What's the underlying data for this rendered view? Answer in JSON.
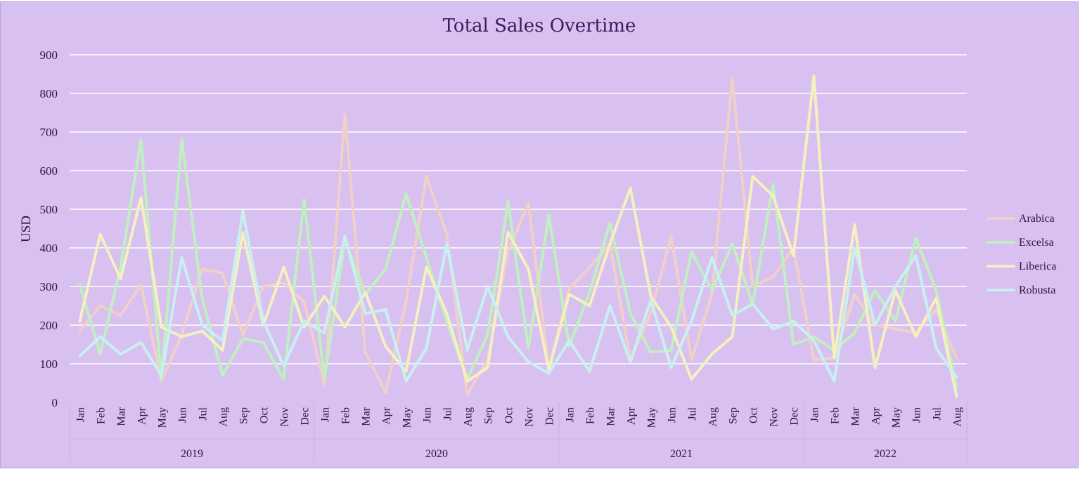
{
  "chart_data": {
    "type": "line",
    "title": "Total Sales Overtime",
    "ylabel": "USD",
    "xlabel": "",
    "ylim": [
      0,
      900
    ],
    "yticks": [
      0,
      100,
      200,
      300,
      400,
      500,
      600,
      700,
      800,
      900
    ],
    "grid": true,
    "legend_position": "right",
    "years": [
      {
        "label": "2019",
        "months": [
          "Jan",
          "Feb",
          "Mar",
          "Apr",
          "May",
          "Jun",
          "Jul",
          "Aug",
          "Sep",
          "Oct",
          "Nov",
          "Dec"
        ]
      },
      {
        "label": "2020",
        "months": [
          "Jan",
          "Feb",
          "Mar",
          "Apr",
          "May",
          "Jun",
          "Jul",
          "Aug",
          "Sep",
          "Oct",
          "Nov",
          "Dec"
        ]
      },
      {
        "label": "2021",
        "months": [
          "Jan",
          "Feb",
          "Mar",
          "Apr",
          "May",
          "Jun",
          "Jul",
          "Aug",
          "Sep",
          "Oct",
          "Nov",
          "Dec"
        ]
      },
      {
        "label": "2022",
        "months": [
          "Jan",
          "Feb",
          "Mar",
          "Apr",
          "May",
          "Jun",
          "Jul",
          "Aug"
        ]
      }
    ],
    "series": [
      {
        "name": "Arabica",
        "color": "#f0d0c8",
        "values": [
          185,
          250,
          225,
          305,
          55,
          175,
          345,
          335,
          175,
          300,
          310,
          260,
          45,
          745,
          130,
          25,
          260,
          585,
          435,
          20,
          110,
          390,
          515,
          90,
          295,
          350,
          410,
          110,
          230,
          430,
          110,
          280,
          840,
          300,
          325,
          400,
          110,
          115,
          280,
          200,
          190,
          180,
          240,
          115
        ]
      },
      {
        "name": "Excelsa",
        "color": "#c0f0c0",
        "values": [
          305,
          125,
          350,
          680,
          60,
          680,
          270,
          70,
          165,
          155,
          60,
          525,
          60,
          420,
          280,
          345,
          540,
          375,
          210,
          60,
          175,
          520,
          140,
          485,
          145,
          285,
          465,
          230,
          130,
          135,
          390,
          290,
          410,
          255,
          565,
          150,
          170,
          135,
          180,
          290,
          210,
          425,
          290,
          40
        ]
      },
      {
        "name": "Liberica",
        "color": "#f5f0c0",
        "values": [
          210,
          435,
          320,
          530,
          195,
          170,
          185,
          135,
          440,
          200,
          350,
          195,
          275,
          195,
          285,
          145,
          80,
          350,
          230,
          55,
          90,
          440,
          345,
          85,
          280,
          250,
          410,
          555,
          275,
          195,
          60,
          125,
          170,
          585,
          535,
          380,
          845,
          115,
          460,
          90,
          290,
          170,
          270,
          15
        ]
      },
      {
        "name": "Robusta",
        "color": "#c8f0f0",
        "values": [
          120,
          170,
          125,
          155,
          70,
          375,
          200,
          160,
          495,
          210,
          95,
          210,
          180,
          430,
          230,
          240,
          55,
          140,
          410,
          135,
          300,
          170,
          105,
          75,
          160,
          80,
          250,
          105,
          265,
          90,
          210,
          375,
          225,
          255,
          190,
          210,
          160,
          55,
          400,
          200,
          300,
          380,
          140,
          65
        ]
      }
    ]
  }
}
